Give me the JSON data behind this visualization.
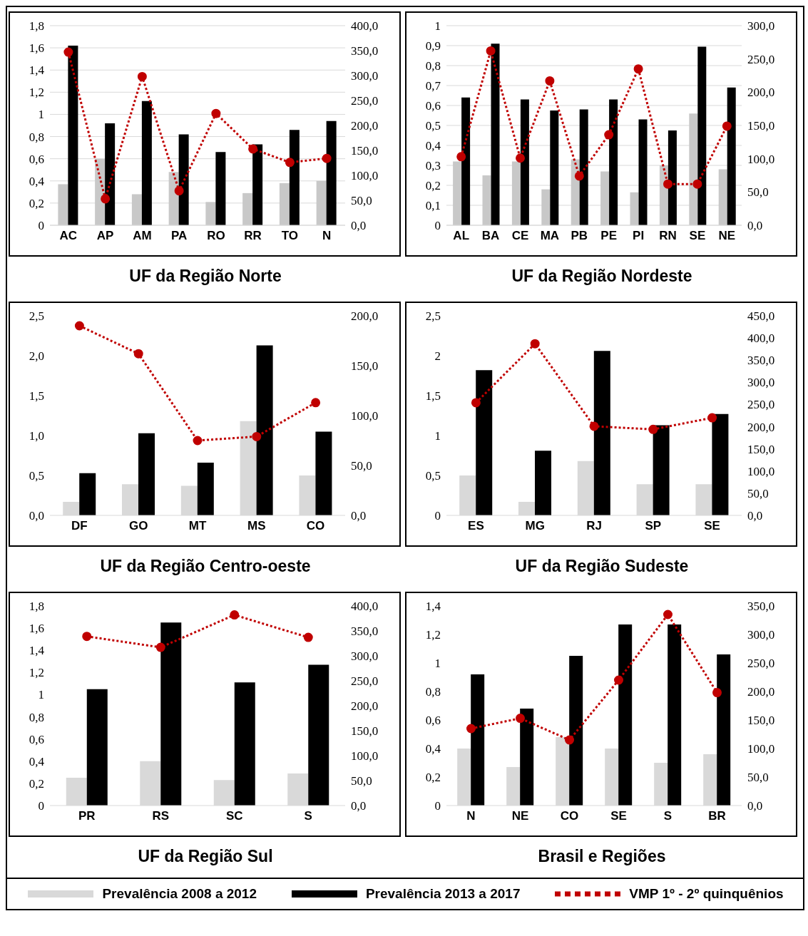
{
  "chart_data": [
    {
      "type": "bar",
      "xlabel": "UF da Região Norte",
      "categories": [
        "AC",
        "AP",
        "AM",
        "PA",
        "RO",
        "RR",
        "TO",
        "N"
      ],
      "grid": "y",
      "marker": "circle",
      "line_style": "dotted",
      "ylim": [
        0,
        1.8
      ],
      "yticks": [
        {
          "value": 0,
          "label": "0"
        },
        {
          "value": 0.2,
          "label": "0,2"
        },
        {
          "value": 0.4,
          "label": "0,4"
        },
        {
          "value": 0.6,
          "label": "0,6"
        },
        {
          "value": 0.8,
          "label": "0,8"
        },
        {
          "value": 1,
          "label": "1"
        },
        {
          "value": 1.2,
          "label": "1,2"
        },
        {
          "value": 1.4,
          "label": "1,4"
        },
        {
          "value": 1.6,
          "label": "1,6"
        },
        {
          "value": 1.8,
          "label": "1,8"
        }
      ],
      "y2lim": [
        0,
        400
      ],
      "y2ticks": [
        {
          "value": 0,
          "label": "0,0"
        },
        {
          "value": 50,
          "label": "50,0"
        },
        {
          "value": 100,
          "label": "100,0"
        },
        {
          "value": 150,
          "label": "150,0"
        },
        {
          "value": 200,
          "label": "200,0"
        },
        {
          "value": 250,
          "label": "250,0"
        },
        {
          "value": 300,
          "label": "300,0"
        },
        {
          "value": 350,
          "label": "350,0"
        },
        {
          "value": 400,
          "label": "400,0"
        }
      ],
      "series": [
        {
          "color": "#c8c8c8",
          "values": [
            0.37,
            0.6,
            0.28,
            0.48,
            0.21,
            0.29,
            0.38,
            0.4
          ]
        },
        {
          "color": "#000000",
          "values": [
            1.62,
            0.92,
            1.12,
            0.82,
            0.66,
            0.73,
            0.86,
            0.94
          ]
        },
        {
          "type": "line",
          "axis": "y2",
          "color": "#c00000",
          "values": [
            347,
            53,
            298,
            69,
            224,
            153,
            126,
            134
          ]
        }
      ]
    },
    {
      "type": "bar",
      "xlabel": "UF da Região Nordeste",
      "categories": [
        "AL",
        "BA",
        "CE",
        "MA",
        "PB",
        "PE",
        "PI",
        "RN",
        "SE",
        "NE"
      ],
      "grid": "y",
      "marker": "circle",
      "line_style": "dotted",
      "ylim": [
        0,
        1
      ],
      "yticks": [
        {
          "value": 0,
          "label": "0"
        },
        {
          "value": 0.1,
          "label": "0,1"
        },
        {
          "value": 0.2,
          "label": "0,2"
        },
        {
          "value": 0.3,
          "label": "0,3"
        },
        {
          "value": 0.4,
          "label": "0,4"
        },
        {
          "value": 0.5,
          "label": "0,5"
        },
        {
          "value": 0.6,
          "label": "0,6"
        },
        {
          "value": 0.7,
          "label": "0,7"
        },
        {
          "value": 0.8,
          "label": "0,8"
        },
        {
          "value": 0.9,
          "label": "0,9"
        },
        {
          "value": 1,
          "label": "1"
        }
      ],
      "y2lim": [
        0,
        300
      ],
      "y2ticks": [
        {
          "value": 0,
          "label": "0,0"
        },
        {
          "value": 50,
          "label": "50,0"
        },
        {
          "value": 100,
          "label": "100,0"
        },
        {
          "value": 150,
          "label": "150,0"
        },
        {
          "value": 200,
          "label": "200,0"
        },
        {
          "value": 250,
          "label": "250,0"
        },
        {
          "value": 300,
          "label": "300,0"
        }
      ],
      "series": [
        {
          "color": "#c8c8c8",
          "values": [
            0.32,
            0.25,
            0.32,
            0.18,
            0.33,
            0.27,
            0.165,
            0.3,
            0.56,
            0.28
          ]
        },
        {
          "color": "#000000",
          "values": [
            0.64,
            0.91,
            0.63,
            0.575,
            0.58,
            0.63,
            0.53,
            0.475,
            0.895,
            0.69
          ]
        },
        {
          "type": "line",
          "axis": "y2",
          "color": "#c00000",
          "values": [
            103,
            262,
            101,
            217,
            74,
            136,
            235,
            62,
            62,
            149
          ]
        }
      ]
    },
    {
      "type": "bar",
      "xlabel": "UF da Região Centro-oeste",
      "categories": [
        "DF",
        "GO",
        "MT",
        "MS",
        "CO"
      ],
      "marker": "circle",
      "line_style": "dotted",
      "ylim": [
        0,
        2.5
      ],
      "yticks": [
        {
          "value": 0,
          "label": "0,0"
        },
        {
          "value": 0.5,
          "label": "0,5"
        },
        {
          "value": 1,
          "label": "1,0"
        },
        {
          "value": 1.5,
          "label": "1,5"
        },
        {
          "value": 2,
          "label": "2,0"
        },
        {
          "value": 2.5,
          "label": "2,5"
        }
      ],
      "y2lim": [
        0,
        200
      ],
      "y2ticks": [
        {
          "value": 0,
          "label": "0,0"
        },
        {
          "value": 50,
          "label": "50,0"
        },
        {
          "value": 100,
          "label": "100,0"
        },
        {
          "value": 150,
          "label": "150,0"
        },
        {
          "value": 200,
          "label": "200,0"
        }
      ],
      "series": [
        {
          "color": "#d9d9d9",
          "values": [
            0.17,
            0.39,
            0.37,
            1.18,
            0.5
          ]
        },
        {
          "color": "#000000",
          "values": [
            0.53,
            1.03,
            0.66,
            2.13,
            1.05
          ]
        },
        {
          "type": "line",
          "axis": "y2",
          "color": "#c00000",
          "values": [
            190,
            162,
            75,
            79,
            113
          ]
        }
      ]
    },
    {
      "type": "bar",
      "xlabel": "UF da Região Sudeste",
      "categories": [
        "ES",
        "MG",
        "RJ",
        "SP",
        "SE"
      ],
      "marker": "circle",
      "line_style": "dotted",
      "ylim": [
        0,
        2.5
      ],
      "yticks": [
        {
          "value": 0,
          "label": "0"
        },
        {
          "value": 0.5,
          "label": "0,5"
        },
        {
          "value": 1,
          "label": "1"
        },
        {
          "value": 1.5,
          "label": "1,5"
        },
        {
          "value": 2,
          "label": "2"
        },
        {
          "value": 2.5,
          "label": "2,5"
        }
      ],
      "y2lim": [
        0,
        450
      ],
      "y2ticks": [
        {
          "value": 0,
          "label": "0,0"
        },
        {
          "value": 50,
          "label": "50,0"
        },
        {
          "value": 100,
          "label": "100,0"
        },
        {
          "value": 150,
          "label": "150,0"
        },
        {
          "value": 200,
          "label": "200,0"
        },
        {
          "value": 250,
          "label": "250,0"
        },
        {
          "value": 300,
          "label": "300,0"
        },
        {
          "value": 350,
          "label": "350,0"
        },
        {
          "value": 400,
          "label": "400,0"
        },
        {
          "value": 450,
          "label": "450,0"
        }
      ],
      "series": [
        {
          "color": "#d9d9d9",
          "values": [
            0.5,
            0.17,
            0.68,
            0.39,
            0.39
          ]
        },
        {
          "color": "#000000",
          "values": [
            1.82,
            0.81,
            2.06,
            1.13,
            1.27
          ]
        },
        {
          "type": "line",
          "axis": "y2",
          "color": "#c00000",
          "values": [
            254,
            387,
            201,
            194,
            220
          ]
        }
      ]
    },
    {
      "type": "bar",
      "xlabel": "UF da Região Sul",
      "categories": [
        "PR",
        "RS",
        "SC",
        "S"
      ],
      "marker": "circle",
      "line_style": "dotted",
      "ylim": [
        0,
        1.8
      ],
      "yticks": [
        {
          "value": 0,
          "label": "0"
        },
        {
          "value": 0.2,
          "label": "0,2"
        },
        {
          "value": 0.4,
          "label": "0,4"
        },
        {
          "value": 0.6,
          "label": "0,6"
        },
        {
          "value": 0.8,
          "label": "0,8"
        },
        {
          "value": 1,
          "label": "1"
        },
        {
          "value": 1.2,
          "label": "1,2"
        },
        {
          "value": 1.4,
          "label": "1,4"
        },
        {
          "value": 1.6,
          "label": "1,6"
        },
        {
          "value": 1.8,
          "label": "1,8"
        }
      ],
      "y2lim": [
        0,
        400
      ],
      "y2ticks": [
        {
          "value": 0,
          "label": "0,0"
        },
        {
          "value": 50,
          "label": "50,0"
        },
        {
          "value": 100,
          "label": "100,0"
        },
        {
          "value": 150,
          "label": "150,0"
        },
        {
          "value": 200,
          "label": "200,0"
        },
        {
          "value": 250,
          "label": "250,0"
        },
        {
          "value": 300,
          "label": "300,0"
        },
        {
          "value": 350,
          "label": "350,0"
        },
        {
          "value": 400,
          "label": "400,0"
        }
      ],
      "series": [
        {
          "color": "#d9d9d9",
          "values": [
            0.25,
            0.4,
            0.23,
            0.29
          ]
        },
        {
          "color": "#000000",
          "values": [
            1.05,
            1.65,
            1.11,
            1.27
          ]
        },
        {
          "type": "line",
          "axis": "y2",
          "color": "#c00000",
          "values": [
            339,
            317,
            382,
            337
          ]
        }
      ]
    },
    {
      "type": "bar",
      "xlabel": "Brasil e Regiões",
      "categories": [
        "N",
        "NE",
        "CO",
        "SE",
        "S",
        "BR"
      ],
      "marker": "circle",
      "line_style": "dotted",
      "legend": "bottom",
      "ylim": [
        0,
        1.4
      ],
      "yticks": [
        {
          "value": 0,
          "label": "0"
        },
        {
          "value": 0.2,
          "label": "0,2"
        },
        {
          "value": 0.4,
          "label": "0,4"
        },
        {
          "value": 0.6,
          "label": "0,6"
        },
        {
          "value": 0.8,
          "label": "0,8"
        },
        {
          "value": 1,
          "label": "1"
        },
        {
          "value": 1.2,
          "label": "1,2"
        },
        {
          "value": 1.4,
          "label": "1,4"
        }
      ],
      "y2lim": [
        0,
        350
      ],
      "y2ticks": [
        {
          "value": 0,
          "label": "0,0"
        },
        {
          "value": 50,
          "label": "50,0"
        },
        {
          "value": 100,
          "label": "100,0"
        },
        {
          "value": 150,
          "label": "150,0"
        },
        {
          "value": 200,
          "label": "200,0"
        },
        {
          "value": 250,
          "label": "250,0"
        },
        {
          "value": 300,
          "label": "300,0"
        },
        {
          "value": 350,
          "label": "350,0"
        }
      ],
      "series": [
        {
          "name": "Prevalência 2008 a 2012",
          "color": "#d9d9d9",
          "values": [
            0.4,
            0.27,
            0.48,
            0.4,
            0.3,
            0.36
          ]
        },
        {
          "name": "Prevalência 2013 a 2017",
          "color": "#000000",
          "values": [
            0.92,
            0.68,
            1.05,
            1.27,
            1.27,
            1.06
          ]
        },
        {
          "name": "VMP 1º - 2º quinquênios",
          "type": "line",
          "axis": "y2",
          "color": "#c00000",
          "values": [
            135,
            153,
            115,
            220,
            335,
            198
          ]
        }
      ]
    }
  ]
}
